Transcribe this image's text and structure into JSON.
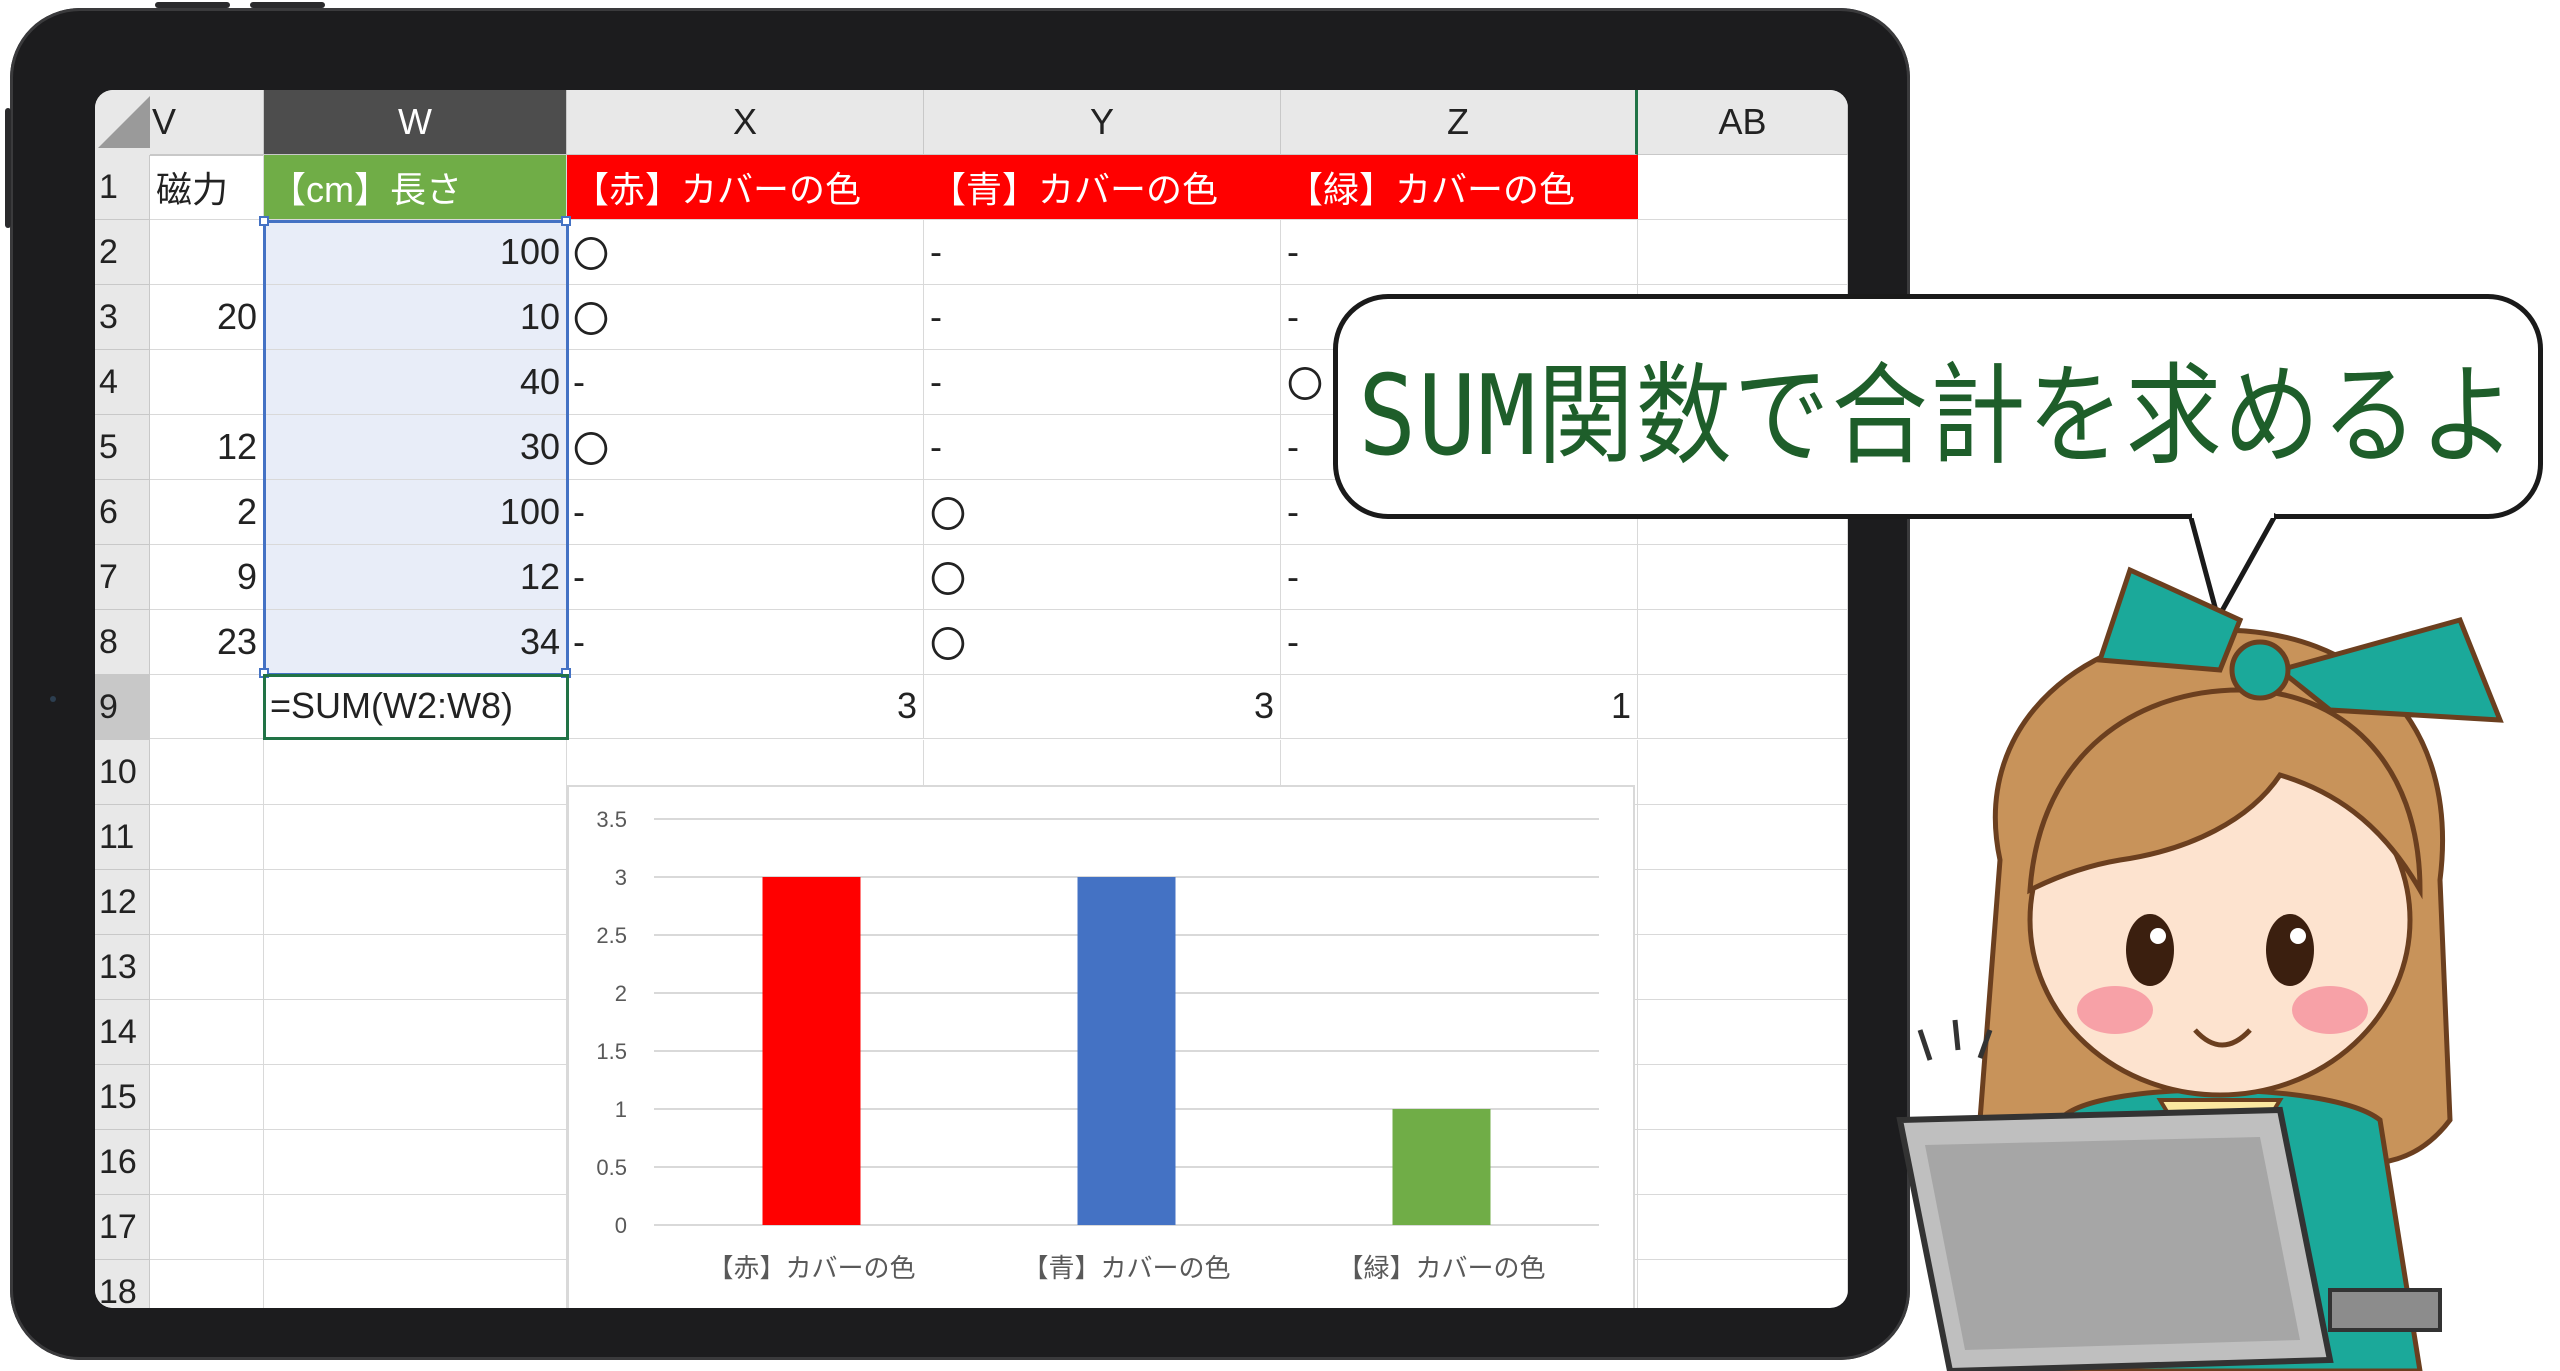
{
  "spreadsheet": {
    "columns": [
      "V",
      "W",
      "X",
      "Y",
      "Z",
      "AB"
    ],
    "rows": [
      "1",
      "2",
      "3",
      "4",
      "5",
      "6",
      "7",
      "8",
      "9",
      "10",
      "11",
      "12",
      "13",
      "14",
      "15",
      "16",
      "17",
      "18"
    ],
    "headers": {
      "v1": "磁力",
      "w1": "【cm】長さ",
      "x1": "【赤】カバーの色",
      "y1": "【青】カバーの色",
      "z1": "【緑】カバーの色"
    },
    "col_v": [
      "",
      "20",
      "",
      "12",
      "2",
      "9",
      "23"
    ],
    "col_w": [
      "100",
      "10",
      "40",
      "30",
      "100",
      "12",
      "34"
    ],
    "col_x": [
      "〇",
      "〇",
      "-",
      "〇",
      "-",
      "-",
      "-"
    ],
    "col_y": [
      "-",
      "-",
      "-",
      "-",
      "〇",
      "〇",
      "〇"
    ],
    "col_z": [
      "-",
      "-",
      "〇",
      "-",
      "-",
      "-",
      "-"
    ],
    "formula_cell": "=SUM(W2:W8)",
    "totals": {
      "x": "3",
      "y": "3",
      "z": "1"
    }
  },
  "chart_data": {
    "type": "bar",
    "categories": [
      "【赤】カバーの色",
      "【青】カバーの色",
      "【緑】カバーの色"
    ],
    "values": [
      3,
      3,
      1
    ],
    "colors": [
      "#ff0000",
      "#4472c4",
      "#70ad47"
    ],
    "ylim": [
      0,
      3.5
    ],
    "yticks": [
      "0",
      "0.5",
      "1",
      "1.5",
      "2",
      "2.5",
      "3",
      "3.5"
    ],
    "grid": true,
    "title": "",
    "xlabel": "",
    "ylabel": ""
  },
  "speech_bubble": {
    "text": "SUM関数で合計を求めるよ"
  },
  "colors": {
    "selection": "#4472c4",
    "active_cell": "#217346",
    "header_red": "#ff0000",
    "header_green": "#70ad47",
    "bubble_text": "#1e5e2a"
  },
  "icons": [
    "select-all-corner-icon",
    "girl-character-illustration",
    "computer-monitor-illustration"
  ]
}
